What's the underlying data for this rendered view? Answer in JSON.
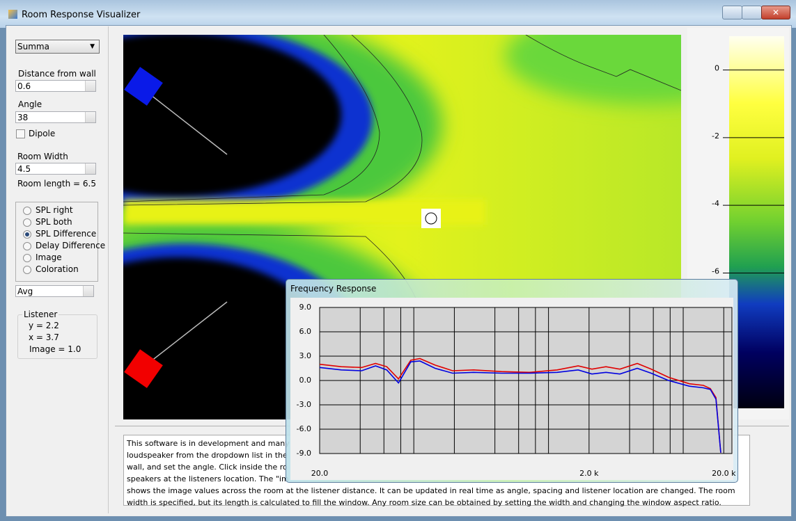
{
  "window": {
    "title": "Room Response Visualizer"
  },
  "controls": {
    "source": "Summa",
    "distance_label": "Distance from wall",
    "distance": "0.6",
    "angle_label": "Angle",
    "angle": "38",
    "dipole": "Dipole",
    "width_label": "Room Width",
    "width": "4.5",
    "room_length": "Room length = 6.5",
    "modes": [
      "SPL right",
      "SPL both",
      "SPL Difference",
      "Delay Difference",
      "Image",
      "Coloration"
    ],
    "selected_mode": 2,
    "average": "Avg"
  },
  "listener": {
    "title": "Listener",
    "lines": [
      "y = 2.2",
      "x = 3.7",
      "Image = 1.0"
    ]
  },
  "colorbar": {
    "lim": [
      1,
      -10
    ],
    "ticks": [
      0,
      -2,
      -4,
      -6
    ]
  },
  "description": [
    "This software is in development and many",
    "loudspeaker from the dropdown list in the",
    "wall, and set the angle.  Click inside the ro",
    "speakers at the listeners location.  The \"im",
    "shows the image values across the room at the listener distance.  It can be updated in real time as angle, spacing and listener location are changed.  The room",
    "width is specified, but its length is calculated to fill the window.  Any room size can be obtained by setting the width and changing the window aspect ratio."
  ],
  "frequency_response": {
    "title": "Frequency Response",
    "chart_data": {
      "type": "line",
      "xscale": "log",
      "x": [
        20,
        29,
        41,
        52,
        63,
        77,
        95,
        111,
        144,
        194,
        278,
        448,
        720,
        1160,
        1660,
        2100,
        2670,
        3390,
        4560,
        5780,
        7780,
        11100,
        14100,
        15900,
        17500,
        19000
      ],
      "series": [
        {
          "color": "#e00000",
          "values": [
            2.0,
            1.7,
            1.6,
            2.1,
            1.7,
            0.2,
            2.5,
            2.7,
            1.9,
            1.2,
            1.3,
            1.1,
            1.0,
            1.3,
            1.8,
            1.4,
            1.7,
            1.4,
            2.1,
            1.4,
            0.4,
            -0.4,
            -0.6,
            -1.0,
            -2.1,
            -8.9
          ]
        },
        {
          "color": "#0000e0",
          "values": [
            1.6,
            1.3,
            1.2,
            1.8,
            1.3,
            -0.3,
            2.3,
            2.4,
            1.5,
            0.9,
            1.0,
            0.9,
            0.9,
            1.0,
            1.3,
            0.8,
            1.0,
            0.8,
            1.5,
            0.9,
            0.0,
            -0.7,
            -0.9,
            -1.1,
            -2.3,
            -8.9
          ]
        }
      ],
      "xlim": [
        20,
        23000
      ],
      "ylim": [
        -9,
        9
      ],
      "xticks": [
        {
          "value": 20,
          "label": "20.0"
        },
        {
          "value": 2000,
          "label": "2.0 k"
        },
        {
          "value": 20000,
          "label": "20.0 k"
        }
      ],
      "xgrid": [
        40,
        60,
        80,
        100,
        200,
        400,
        600,
        800,
        1000,
        2000,
        4000,
        6000,
        8000,
        10000,
        20000
      ],
      "yticks": [
        {
          "value": 9,
          "label": "9.0"
        },
        {
          "value": 6,
          "label": "6.0"
        },
        {
          "value": 3,
          "label": "3.0"
        },
        {
          "value": 0,
          "label": "0.0"
        },
        {
          "value": -3,
          "label": "-3.0"
        },
        {
          "value": -6,
          "label": "-6.0"
        },
        {
          "value": -9,
          "label": "-9.0"
        }
      ],
      "grid": true
    }
  }
}
